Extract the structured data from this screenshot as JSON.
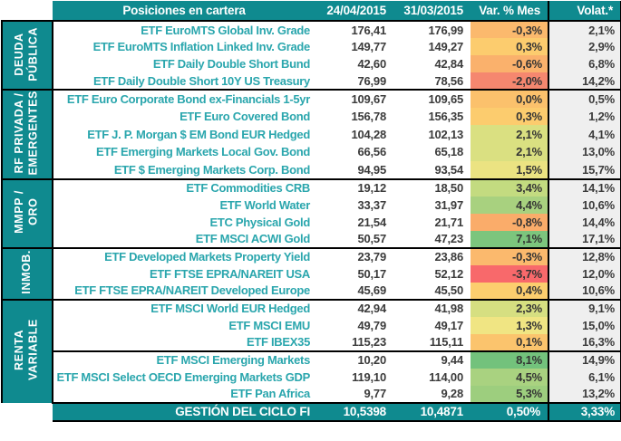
{
  "table": {
    "title": "Posiciones en cartera",
    "columns": [
      "24/04/2015",
      "31/03/2015",
      "Var. % Mes",
      "Volat.*"
    ],
    "groups": [
      {
        "label": "DEUDA\nPÚBLICA",
        "rows": [
          {
            "name": "ETF EuroMTS Global Inv. Grade",
            "v1": "176,41",
            "v2": "176,99",
            "var": "-0,3%",
            "var_color": "#FBB96D",
            "volat": "2,1%"
          },
          {
            "name": "ETF EuroMTS Inflation Linked Inv. Grade",
            "v1": "149,77",
            "v2": "149,27",
            "var": "0,3%",
            "var_color": "#FCCC6E",
            "volat": "2,9%"
          },
          {
            "name": "ETF Daily Double Short Bund",
            "v1": "42,60",
            "v2": "42,84",
            "var": "-0,6%",
            "var_color": "#FAB16C",
            "volat": "6,8%"
          },
          {
            "name": "ETF Daily Double Short 10Y US Treasury",
            "v1": "76,99",
            "v2": "78,56",
            "var": "-2,0%",
            "var_color": "#F5876F",
            "volat": "14,2%"
          }
        ]
      },
      {
        "label": "RF PRIVADA /\nEMERGENTES",
        "rows": [
          {
            "name": "ETF Euro Corporate Bond ex-Financials 1-5yr",
            "v1": "109,67",
            "v2": "109,65",
            "var": "0,0%",
            "var_color": "#FBC16C",
            "volat": "0,5%"
          },
          {
            "name": "ETF Euro Covered Bond",
            "v1": "156,78",
            "v2": "156,35",
            "var": "0,3%",
            "var_color": "#FCCC6E",
            "volat": "1,2%"
          },
          {
            "name": "ETF J. P. Morgan $ EM Bond EUR Hedged",
            "v1": "104,28",
            "v2": "102,13",
            "var": "2,1%",
            "var_color": "#DAE081",
            "volat": "4,1%"
          },
          {
            "name": "ETF Emerging Markets Local Gov. Bond",
            "v1": "66,56",
            "v2": "65,18",
            "var": "2,1%",
            "var_color": "#DAE081",
            "volat": "13,0%"
          },
          {
            "name": "ETF $ Emerging Markets Corp. Bond",
            "v1": "94,95",
            "v2": "93,54",
            "var": "1,5%",
            "var_color": "#EBE382",
            "volat": "15,7%"
          }
        ]
      },
      {
        "label": "MMPP /\nORO",
        "rows": [
          {
            "name": "ETF Commodities CRB",
            "v1": "19,12",
            "v2": "18,50",
            "var": "3,4%",
            "var_color": "#C3DB80",
            "volat": "14,1%"
          },
          {
            "name": "ETF World Water",
            "v1": "33,37",
            "v2": "31,97",
            "var": "4,4%",
            "var_color": "#A8D17F",
            "volat": "10,6%"
          },
          {
            "name": "ETC Physical Gold",
            "v1": "21,54",
            "v2": "21,71",
            "var": "-0,8%",
            "var_color": "#FAAC6A",
            "volat": "14,4%"
          },
          {
            "name": "ETF MSCI ACWI Gold",
            "v1": "50,57",
            "v2": "47,23",
            "var": "7,1%",
            "var_color": "#7CC57D",
            "volat": "17,1%"
          }
        ]
      },
      {
        "label": "INMOB.",
        "rows": [
          {
            "name": "ETF Developed Markets Property Yield",
            "v1": "23,79",
            "v2": "23,86",
            "var": "-0,3%",
            "var_color": "#FBB96D",
            "volat": "12,8%"
          },
          {
            "name": "ETF FTSE EPRA/NAREIT USA",
            "v1": "50,17",
            "v2": "52,12",
            "var": "-3,7%",
            "var_color": "#F8696B",
            "volat": "12,0%"
          },
          {
            "name": "ETF FTSE EPRA/NAREIT Developed Europe",
            "v1": "45,69",
            "v2": "45,50",
            "var": "0,4%",
            "var_color": "#FCCE6E",
            "volat": "10,6%"
          }
        ]
      },
      {
        "label": "RENTA VARIABLE",
        "rows": [
          {
            "name": "ETF MSCI World EUR Hedged",
            "v1": "42,94",
            "v2": "41,98",
            "var": "2,3%",
            "var_color": "#D6DF81",
            "volat": "9,1%"
          },
          {
            "name": "ETF MSCI EMU",
            "v1": "49,79",
            "v2": "49,17",
            "var": "1,3%",
            "var_color": "#F0E583",
            "volat": "15,0%"
          },
          {
            "name": "ETF IBEX35",
            "v1": "115,23",
            "v2": "115,11",
            "var": "0,1%",
            "var_color": "#FBC46D",
            "volat": "16,3%"
          },
          {
            "name": "ETF MSCI Emerging Markets",
            "v1": "10,20",
            "v2": "9,44",
            "var": "8,1%",
            "var_color": "#73C27C",
            "volat": "14,9%",
            "divider_before": true
          },
          {
            "name": "ETF MSCI Select OECD Emerging Markets GDP",
            "v1": "119,10",
            "v2": "114,00",
            "var": "4,5%",
            "var_color": "#A9D280",
            "volat": "6,1%"
          },
          {
            "name": "ETF Pan Africa",
            "v1": "9,77",
            "v2": "9,28",
            "var": "5,3%",
            "var_color": "#9DCE7E",
            "volat": "13,2%"
          }
        ]
      }
    ],
    "footer": {
      "name": "GESTIÓN DEL CICLO FI",
      "v1": "10,5398",
      "v2": "10,4871",
      "var": "0,50%",
      "volat": "3,33%"
    }
  },
  "colors": {
    "teal": "#0F8A8F",
    "name_text": "#2AA6AD",
    "volat_bg": "#EFEFEF",
    "scale_min_red": "#F8696B",
    "scale_mid_yellow": "#FCCC6E",
    "scale_max_green": "#73C27C"
  }
}
